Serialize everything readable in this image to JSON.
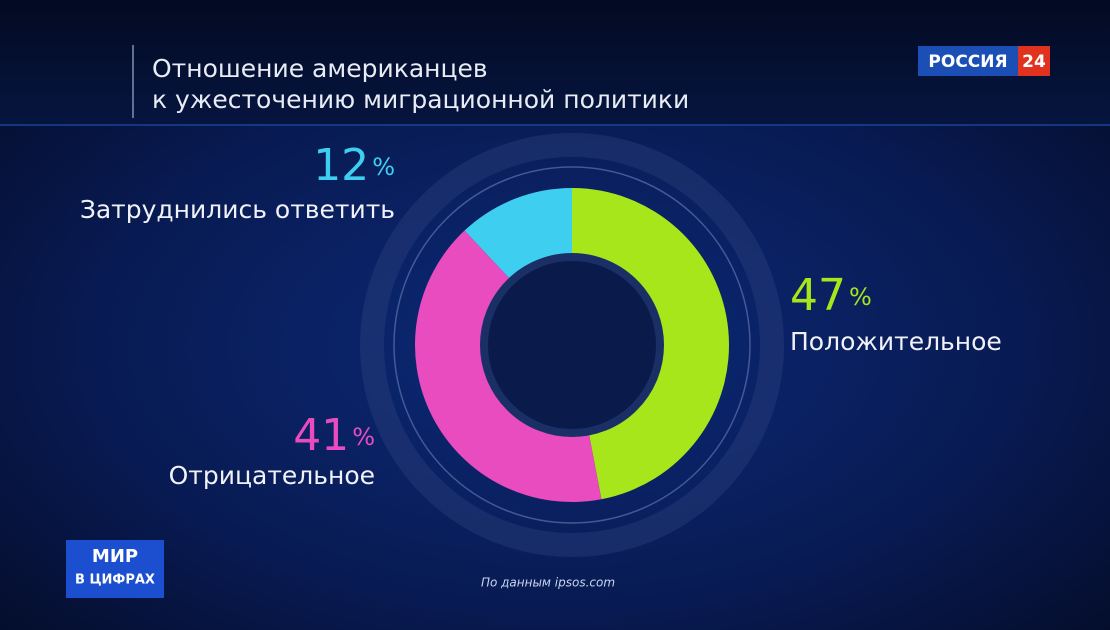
{
  "chart_data": {
    "type": "pie",
    "donut": true,
    "title": [
      "Отношение американцев",
      "к ужесточению миграционной политики"
    ],
    "categories": [
      "Положительное",
      "Отрицательное",
      "Затруднились ответить"
    ],
    "values": [
      47,
      41,
      12
    ],
    "unit": "%",
    "colors": [
      "#a8e61c",
      "#e84cbf",
      "#3ecff0"
    ],
    "source": "По данным ipsos.com"
  },
  "channel_logo": {
    "name": "РОССИЯ",
    "number": "24"
  },
  "program_logo": {
    "line1": "МИР",
    "line2": "В ЦИФРАХ"
  }
}
